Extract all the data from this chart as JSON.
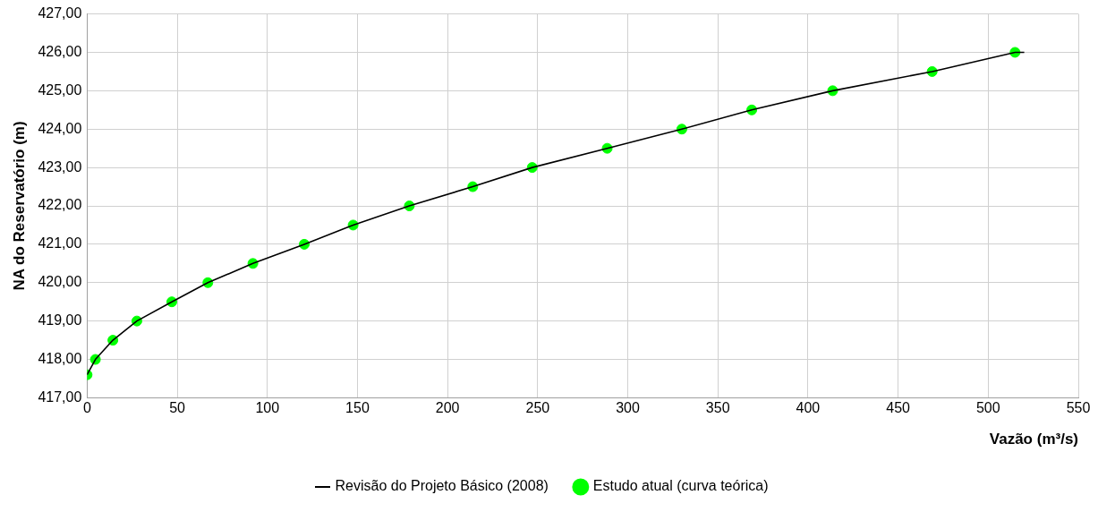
{
  "chart_data": {
    "type": "line",
    "xlabel": "Vazão (m³/s)",
    "ylabel": "NA do Reservatório (m)",
    "xlim": [
      0,
      550
    ],
    "xticks": [
      0,
      50,
      100,
      150,
      200,
      250,
      300,
      350,
      400,
      450,
      500,
      550
    ],
    "ylim": [
      417,
      427
    ],
    "yticks": [
      {
        "value": 417,
        "label": "417,00"
      },
      {
        "value": 418,
        "label": "418,00"
      },
      {
        "value": 419,
        "label": "419,00"
      },
      {
        "value": 420,
        "label": "420,00"
      },
      {
        "value": 421,
        "label": "421,00"
      },
      {
        "value": 422,
        "label": "422,00"
      },
      {
        "value": 423,
        "label": "423,00"
      },
      {
        "value": 424,
        "label": "424,00"
      },
      {
        "value": 425,
        "label": "425,00"
      },
      {
        "value": 426,
        "label": "426,00"
      },
      {
        "value": 427,
        "label": "427,00"
      }
    ],
    "grid": true,
    "legend": "bottom",
    "series": [
      {
        "name": "Revisão do Projeto Básico (2008)",
        "color": "#000000",
        "marker": "none",
        "line_style": "solid",
        "x": [
          0,
          4.6,
          14.3,
          27.6,
          47,
          67,
          92,
          120.5,
          147.6,
          178.8,
          214,
          247,
          288.6,
          330,
          368.8,
          413.7,
          468.9,
          514.9,
          520
        ],
        "values": [
          417.6,
          418,
          418.5,
          419,
          419.5,
          420,
          420.5,
          421,
          421.5,
          422,
          422.5,
          423,
          423.5,
          424,
          424.5,
          425,
          425.5,
          426,
          426
        ]
      },
      {
        "name": "Estudo atual (curva teórica)",
        "type": "scatter",
        "color": "#00ff00",
        "marker": "circle",
        "x": [
          0,
          4.6,
          14.3,
          27.6,
          47,
          67,
          92,
          120.5,
          147.6,
          178.8,
          214,
          247,
          288.6,
          330,
          368.8,
          413.7,
          468.9,
          514.9
        ],
        "values": [
          417.6,
          418,
          418.5,
          419,
          419.5,
          420,
          420.5,
          421,
          421.5,
          422,
          422.5,
          423,
          423.5,
          424,
          424.5,
          425,
          425.5,
          426
        ]
      }
    ]
  }
}
